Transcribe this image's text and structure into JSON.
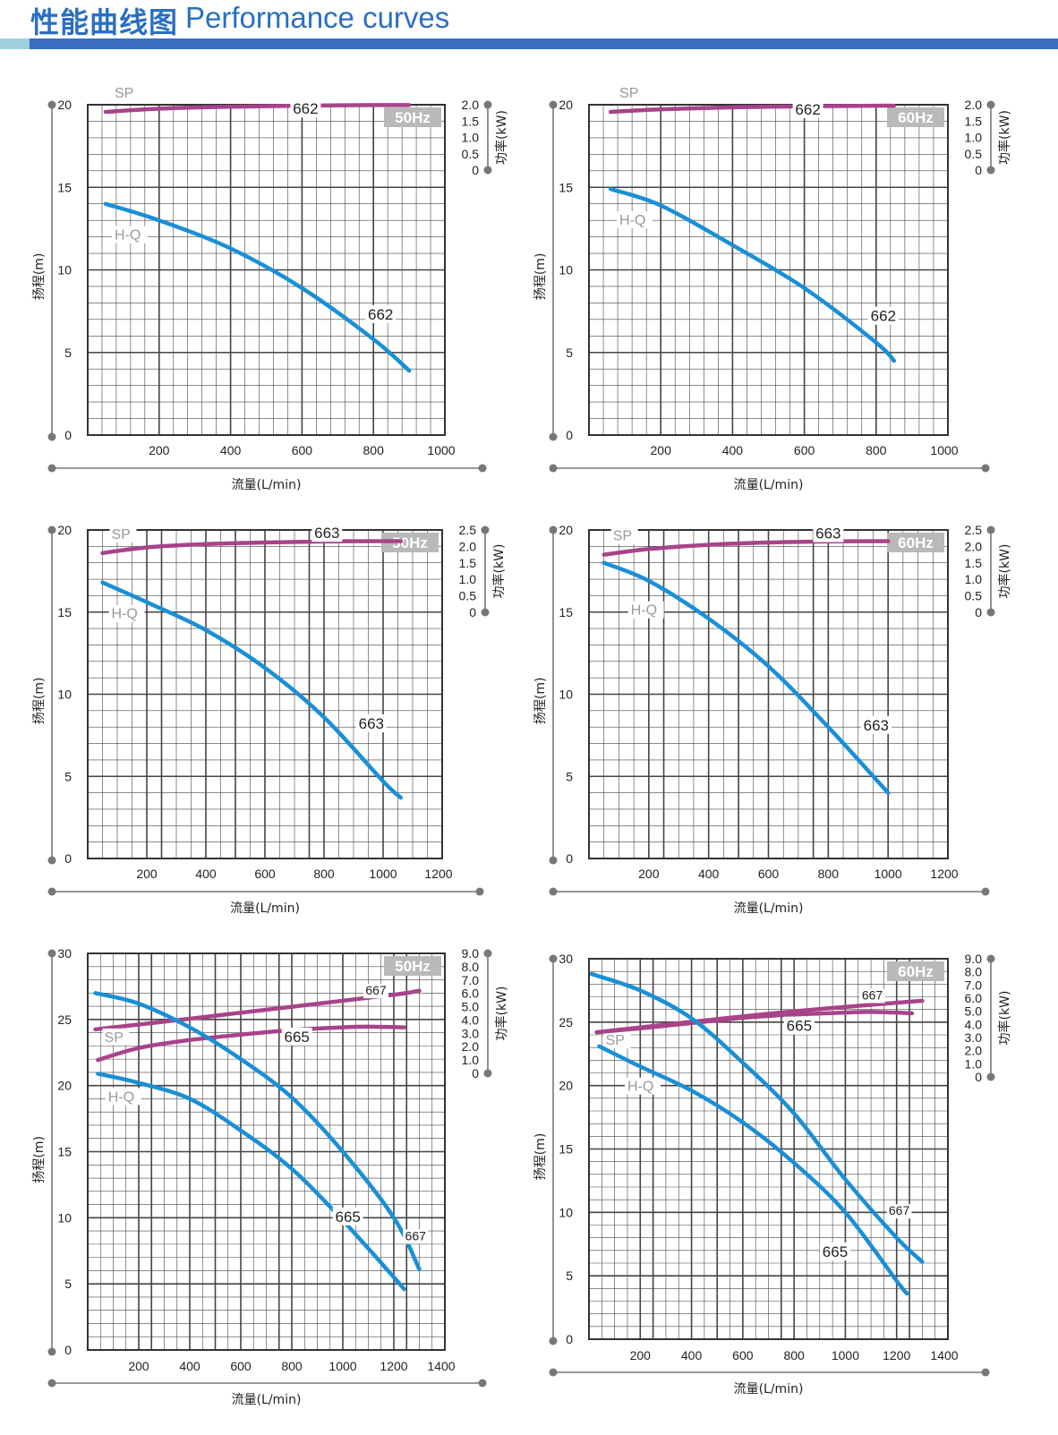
{
  "header": {
    "title_cn": "性能曲线图",
    "title_en": "Performance curves",
    "colors": {
      "title": "#2a6fc4",
      "bar": "#3a6ec0",
      "bar_accent": "#9fd0dc"
    }
  },
  "colors": {
    "hq": "#1a8fd6",
    "sp": "#a8438a",
    "grid": "#444444",
    "hz_box": "#b9b9b9"
  },
  "chart_data": [
    {
      "type": "line",
      "frequency": "50Hz",
      "xlabel": "流量(L/min)",
      "ylabel": "扬程(m)",
      "y2label": "功率(kW)",
      "xlim": [
        0,
        1000
      ],
      "ylim": [
        0,
        20
      ],
      "y2lim": [
        0,
        2.0
      ],
      "xticks": [
        200,
        400,
        600,
        800,
        1000
      ],
      "yticks": [
        0,
        5,
        10,
        15,
        20
      ],
      "y2ticks": [
        "0",
        "0.5",
        "1.0",
        "1.5",
        "2.0"
      ],
      "curve_labels": {
        "sp": "SP",
        "hq": "H-Q"
      },
      "series": [
        {
          "kind": "sp",
          "label": "662",
          "x": [
            50,
            200,
            400,
            600,
            800,
            900
          ],
          "y": [
            1.78,
            1.88,
            1.94,
            1.97,
            1.99,
            1.99
          ],
          "label_at": [
            610,
            1.72
          ]
        },
        {
          "kind": "hq",
          "label": "662",
          "x": [
            50,
            200,
            400,
            600,
            800,
            900
          ],
          "y": [
            14.0,
            13.0,
            11.3,
            8.9,
            5.8,
            3.9
          ],
          "label_at": [
            820,
            7.0
          ]
        }
      ]
    },
    {
      "type": "line",
      "frequency": "60Hz",
      "xlabel": "流量(L/min)",
      "ylabel": "扬程(m)",
      "y2label": "功率(kW)",
      "xlim": [
        0,
        1000
      ],
      "ylim": [
        0,
        20
      ],
      "y2lim": [
        0,
        2.0
      ],
      "xticks": [
        200,
        400,
        600,
        800,
        1000
      ],
      "yticks": [
        0,
        5,
        10,
        15,
        20
      ],
      "y2ticks": [
        "0",
        "0.5",
        "1.0",
        "1.5",
        "2.0"
      ],
      "curve_labels": {
        "sp": "SP",
        "hq": "H-Q"
      },
      "series": [
        {
          "kind": "sp",
          "label": "662",
          "x": [
            60,
            200,
            400,
            600,
            800,
            850
          ],
          "y": [
            1.78,
            1.86,
            1.92,
            1.95,
            1.97,
            1.97
          ],
          "label_at": [
            610,
            1.7
          ]
        },
        {
          "kind": "hq",
          "label": "662",
          "x": [
            60,
            200,
            400,
            600,
            800,
            850
          ],
          "y": [
            14.9,
            13.9,
            11.5,
            8.9,
            5.6,
            4.5
          ],
          "label_at": [
            820,
            6.9
          ]
        }
      ]
    },
    {
      "type": "line",
      "frequency": "50Hz",
      "xlabel": "流量(L/min)",
      "ylabel": "扬程(m)",
      "y2label": "功率(kW)",
      "xlim": [
        0,
        1200
      ],
      "ylim": [
        0,
        20
      ],
      "y2lim": [
        0,
        2.5
      ],
      "xticks": [
        200,
        400,
        600,
        800,
        1000,
        1200
      ],
      "yticks": [
        0,
        5,
        10,
        15,
        20
      ],
      "y2ticks": [
        "0",
        "0.5",
        "1.0",
        "1.5",
        "2.0",
        "2.5"
      ],
      "curve_labels": {
        "sp": "SP",
        "hq": "H-Q"
      },
      "series": [
        {
          "kind": "sp",
          "label": "663",
          "x": [
            50,
            200,
            400,
            600,
            800,
            1000,
            1060
          ],
          "y": [
            1.8,
            1.97,
            2.07,
            2.12,
            2.15,
            2.16,
            2.16
          ],
          "label_at": [
            810,
            2.25
          ]
        },
        {
          "kind": "hq",
          "label": "663",
          "x": [
            50,
            200,
            400,
            600,
            800,
            1000,
            1060
          ],
          "y": [
            16.8,
            15.6,
            13.9,
            11.6,
            8.6,
            4.7,
            3.7
          ],
          "label_at": [
            960,
            7.9
          ]
        }
      ]
    },
    {
      "type": "line",
      "frequency": "60Hz",
      "xlabel": "流量(L/min)",
      "ylabel": "扬程(m)",
      "y2label": "功率(kW)",
      "xlim": [
        0,
        1200
      ],
      "ylim": [
        0,
        20
      ],
      "y2lim": [
        0,
        2.5
      ],
      "xticks": [
        200,
        400,
        600,
        800,
        1000,
        1200
      ],
      "yticks": [
        0,
        5,
        10,
        15,
        20
      ],
      "y2ticks": [
        "0",
        "0.5",
        "1.0",
        "1.5",
        "2.0",
        "2.5"
      ],
      "curve_labels": {
        "sp": "SP",
        "hq": "H-Q"
      },
      "series": [
        {
          "kind": "sp",
          "label": "663",
          "x": [
            50,
            200,
            400,
            600,
            800,
            1000
          ],
          "y": [
            1.75,
            1.92,
            2.05,
            2.12,
            2.15,
            2.16
          ],
          "label_at": [
            800,
            2.24
          ]
        },
        {
          "kind": "hq",
          "label": "663",
          "x": [
            50,
            200,
            400,
            600,
            800,
            1000
          ],
          "y": [
            18.0,
            16.9,
            14.6,
            11.7,
            8.0,
            4.0
          ],
          "label_at": [
            960,
            7.8
          ]
        }
      ]
    },
    {
      "type": "line",
      "frequency": "50Hz",
      "xlabel": "流量(L/min)",
      "ylabel": "扬程(m)",
      "y2label": "功率(kW)",
      "xlim": [
        0,
        1400
      ],
      "ylim": [
        0,
        30
      ],
      "y2lim": [
        0,
        9.0
      ],
      "xticks": [
        200,
        400,
        600,
        800,
        1000,
        1200,
        1400
      ],
      "yticks": [
        0,
        5,
        10,
        15,
        20,
        25,
        30
      ],
      "y2ticks": [
        "0",
        "1.0",
        "2.0",
        "3.0",
        "4.0",
        "5.0",
        "6.0",
        "7.0",
        "8.0",
        "9.0"
      ],
      "curve_labels": {
        "sp": "SP",
        "hq": "H-Q"
      },
      "series": [
        {
          "kind": "sp",
          "label": "667",
          "x": [
            30,
            400,
            800,
            1200,
            1300
          ],
          "y": [
            3.3,
            4.1,
            5.0,
            5.9,
            6.2
          ],
          "label_at": [
            1130,
            5.9
          ],
          "label_size": "small"
        },
        {
          "kind": "sp",
          "label": "665",
          "x": [
            40,
            200,
            400,
            600,
            800,
            1000,
            1100,
            1240
          ],
          "y": [
            1.0,
            1.9,
            2.5,
            2.9,
            3.25,
            3.45,
            3.5,
            3.45
          ],
          "label_at": [
            820,
            2.35
          ]
        },
        {
          "kind": "hq",
          "label": "667",
          "x": [
            30,
            200,
            400,
            600,
            800,
            1000,
            1200,
            1300
          ],
          "y": [
            27.0,
            26.2,
            24.4,
            22.0,
            19.1,
            15.0,
            10.0,
            6.1
          ],
          "label_at": [
            1285,
            8.3
          ],
          "label_size": "small"
        },
        {
          "kind": "hq",
          "label": "665",
          "x": [
            40,
            200,
            400,
            600,
            800,
            1000,
            1200,
            1240
          ],
          "y": [
            20.9,
            20.2,
            19.0,
            16.6,
            13.7,
            9.8,
            5.5,
            4.6
          ],
          "label_at": [
            1020,
            9.7
          ]
        }
      ]
    },
    {
      "type": "line",
      "frequency": "60Hz",
      "xlabel": "流量(L/min)",
      "ylabel": "扬程(m)",
      "y2label": "功率(kW)",
      "xlim": [
        0,
        1400
      ],
      "ylim": [
        0,
        30
      ],
      "y2lim": [
        0,
        9.0
      ],
      "xticks": [
        200,
        400,
        600,
        800,
        1000,
        1200,
        1400
      ],
      "yticks": [
        0,
        5,
        10,
        15,
        20,
        25,
        30
      ],
      "y2ticks": [
        "0",
        "1.0",
        "2.0",
        "3.0",
        "4.0",
        "5.0",
        "6.0",
        "7.0",
        "8.0",
        "9.0"
      ],
      "curve_labels": {
        "sp": "SP",
        "hq": "H-Q"
      },
      "series": [
        {
          "kind": "sp",
          "label": "667",
          "x": [
            30,
            400,
            800,
            1200,
            1300
          ],
          "y": [
            3.4,
            4.2,
            5.0,
            5.65,
            5.8
          ],
          "label_at": [
            1105,
            5.9
          ],
          "label_size": "small"
        },
        {
          "kind": "sp",
          "label": "665",
          "x": [
            30,
            200,
            400,
            600,
            800,
            1000,
            1100,
            1260
          ],
          "y": [
            3.4,
            3.7,
            4.1,
            4.5,
            4.75,
            4.9,
            4.95,
            4.85
          ],
          "label_at": [
            820,
            3.5
          ]
        },
        {
          "kind": "hq",
          "label": "667",
          "x": [
            10,
            200,
            400,
            600,
            800,
            1000,
            1200,
            1300
          ],
          "y": [
            28.8,
            27.5,
            25.3,
            21.8,
            17.8,
            12.6,
            8.0,
            6.1
          ],
          "label_at": [
            1210,
            9.8
          ],
          "label_size": "small"
        },
        {
          "kind": "hq",
          "label": "665",
          "x": [
            40,
            200,
            400,
            600,
            800,
            1000,
            1200,
            1240
          ],
          "y": [
            23.1,
            21.5,
            19.6,
            17.1,
            13.9,
            10.0,
            4.6,
            3.6
          ],
          "label_at": [
            960,
            6.5
          ]
        }
      ]
    }
  ]
}
